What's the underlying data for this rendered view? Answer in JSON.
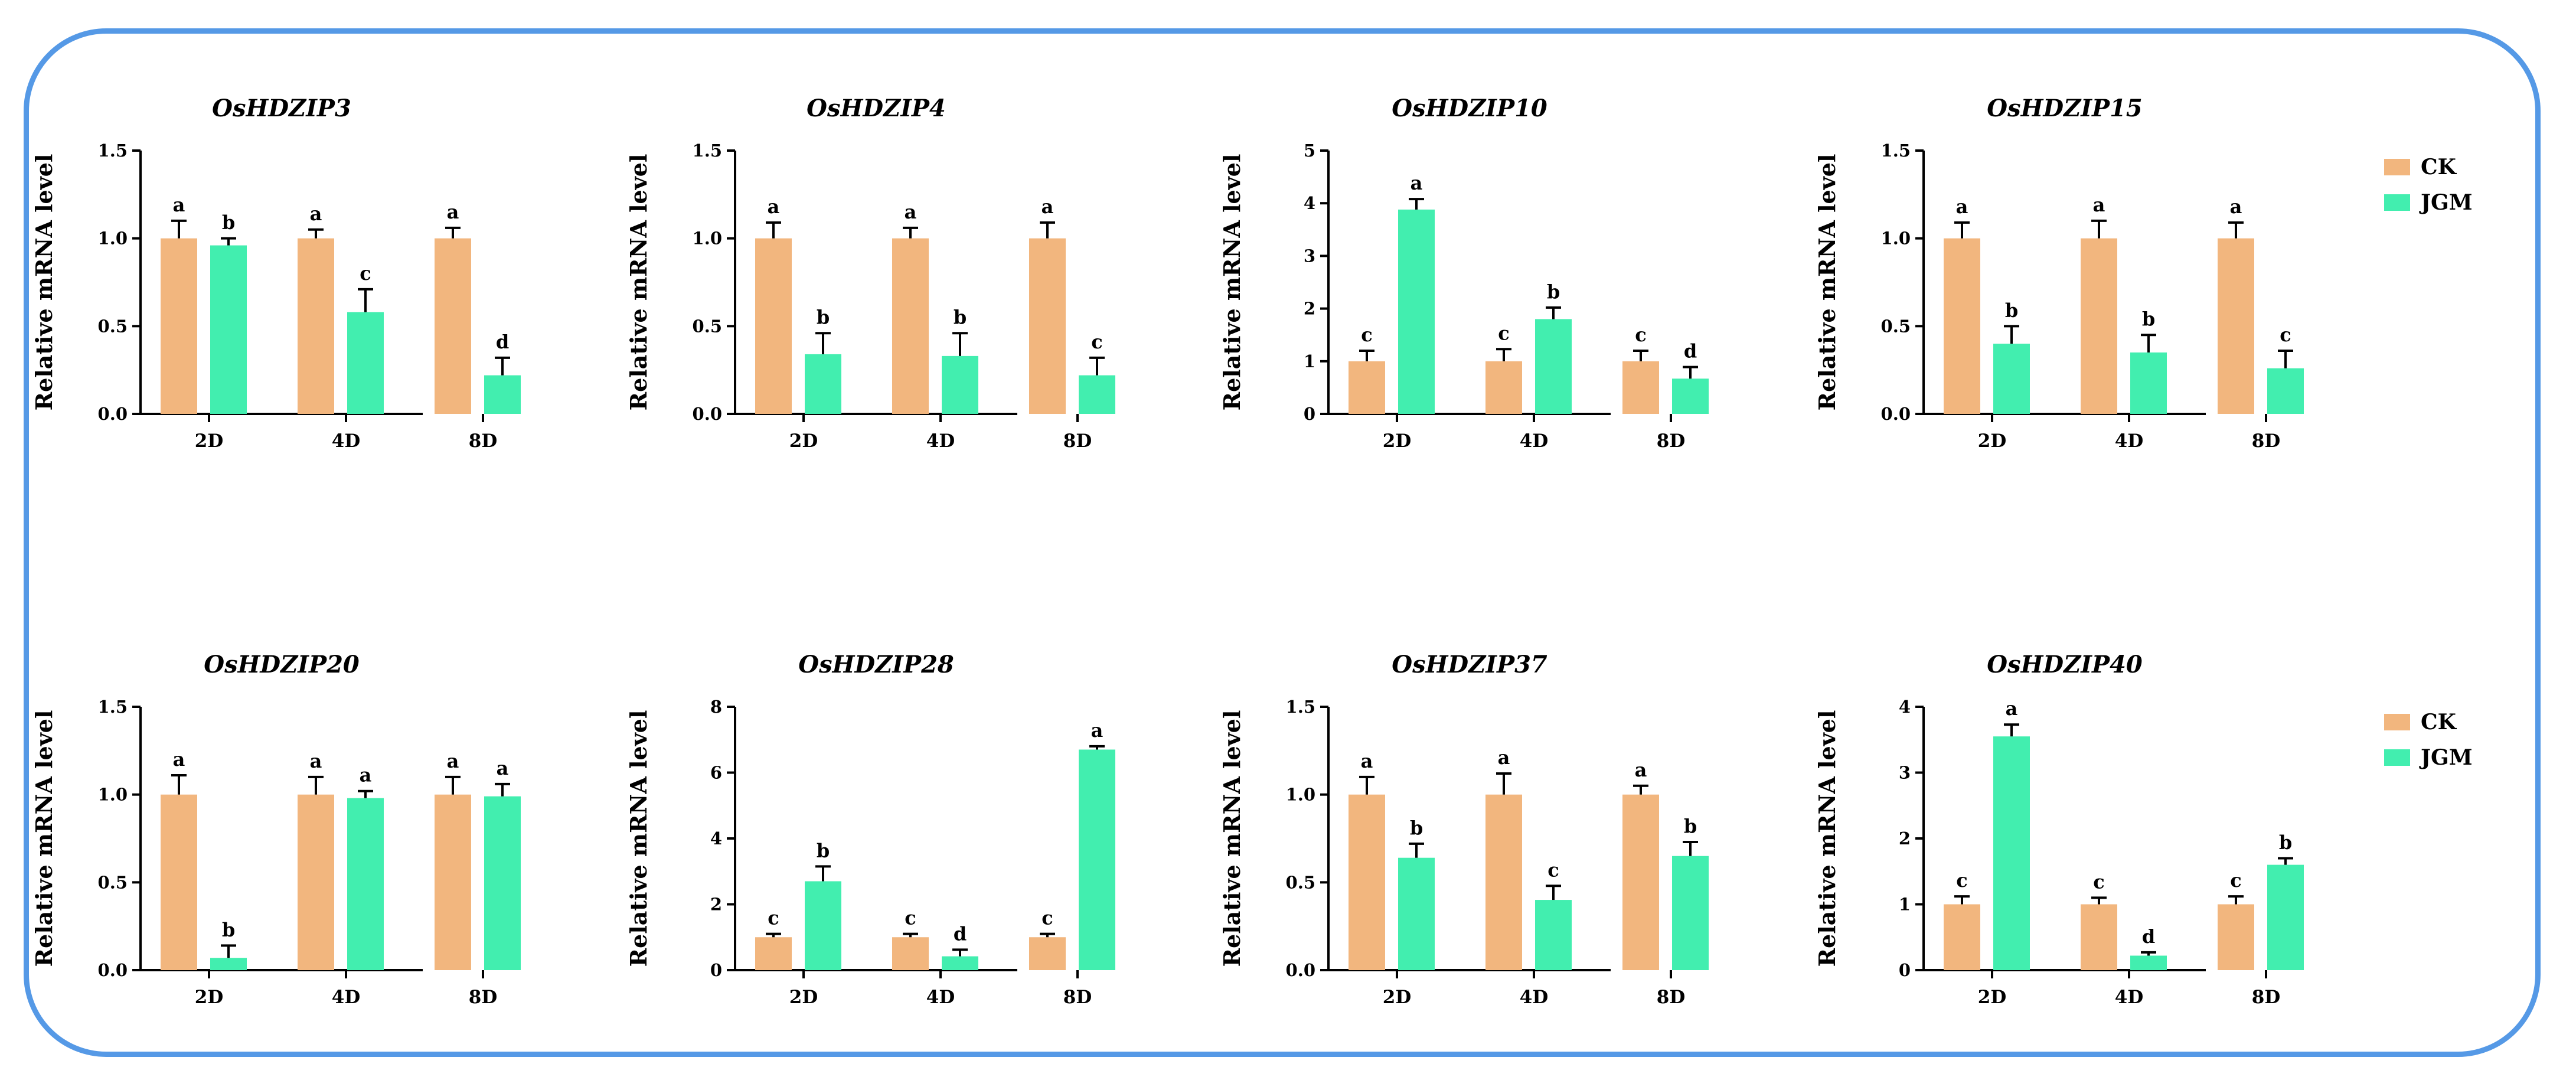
{
  "legend": {
    "items": [
      {
        "label": "CK",
        "color": "#f2b67e"
      },
      {
        "label": "JGM",
        "color": "#42eeaf"
      }
    ]
  },
  "chart_data": [
    {
      "type": "bar",
      "title": "OsHDZIP3",
      "ylabel": "Relative mRNA level",
      "ylim": [
        0,
        1.5
      ],
      "yticks": [
        "0.0",
        "0.5",
        "1.0",
        "1.5"
      ],
      "categories": [
        "2D",
        "4D",
        "8D"
      ],
      "series": [
        {
          "name": "CK",
          "values": [
            1.0,
            1.0,
            1.0
          ],
          "errors": [
            0.1,
            0.05,
            0.06
          ],
          "letters": [
            "a",
            "a",
            "a"
          ]
        },
        {
          "name": "JGM",
          "values": [
            0.96,
            0.58,
            0.22
          ],
          "errors": [
            0.04,
            0.13,
            0.1
          ],
          "letters": [
            "b",
            "c",
            "d"
          ]
        }
      ]
    },
    {
      "type": "bar",
      "title": "OsHDZIP4",
      "ylabel": "Relative mRNA level",
      "ylim": [
        0,
        1.5
      ],
      "yticks": [
        "0.0",
        "0.5",
        "1.0",
        "1.5"
      ],
      "categories": [
        "2D",
        "4D",
        "8D"
      ],
      "series": [
        {
          "name": "CK",
          "values": [
            1.0,
            1.0,
            1.0
          ],
          "errors": [
            0.09,
            0.06,
            0.09
          ],
          "letters": [
            "a",
            "a",
            "a"
          ]
        },
        {
          "name": "JGM",
          "values": [
            0.34,
            0.33,
            0.22
          ],
          "errors": [
            0.12,
            0.13,
            0.1
          ],
          "letters": [
            "b",
            "b",
            "c"
          ]
        }
      ]
    },
    {
      "type": "bar",
      "title": "OsHDZIP10",
      "ylabel": "Relative mRNA level",
      "ylim": [
        0,
        5
      ],
      "yticks": [
        "0",
        "1",
        "2",
        "3",
        "4",
        "5"
      ],
      "categories": [
        "2D",
        "4D",
        "8D"
      ],
      "series": [
        {
          "name": "CK",
          "values": [
            1.0,
            1.0,
            1.0
          ],
          "errors": [
            0.2,
            0.23,
            0.2
          ],
          "letters": [
            "c",
            "c",
            "c"
          ]
        },
        {
          "name": "JGM",
          "values": [
            3.88,
            1.8,
            0.67
          ],
          "errors": [
            0.2,
            0.22,
            0.22
          ],
          "letters": [
            "a",
            "b",
            "d"
          ]
        }
      ]
    },
    {
      "type": "bar",
      "title": "OsHDZIP15",
      "ylabel": "Relative mRNA level",
      "ylim": [
        0,
        1.5
      ],
      "yticks": [
        "0.0",
        "0.5",
        "1.0",
        "1.5"
      ],
      "categories": [
        "2D",
        "4D",
        "8D"
      ],
      "series": [
        {
          "name": "CK",
          "values": [
            1.0,
            1.0,
            1.0
          ],
          "errors": [
            0.09,
            0.1,
            0.09
          ],
          "letters": [
            "a",
            "a",
            "a"
          ]
        },
        {
          "name": "JGM",
          "values": [
            0.4,
            0.35,
            0.26
          ],
          "errors": [
            0.1,
            0.1,
            0.1
          ],
          "letters": [
            "b",
            "b",
            "c"
          ]
        }
      ]
    },
    {
      "type": "bar",
      "title": "OsHDZIP20",
      "ylabel": "Relative mRNA level",
      "ylim": [
        0,
        1.5
      ],
      "yticks": [
        "0.0",
        "0.5",
        "1.0",
        "1.5"
      ],
      "categories": [
        "2D",
        "4D",
        "8D"
      ],
      "series": [
        {
          "name": "CK",
          "values": [
            1.0,
            1.0,
            1.0
          ],
          "errors": [
            0.11,
            0.1,
            0.1
          ],
          "letters": [
            "a",
            "a",
            "a"
          ]
        },
        {
          "name": "JGM",
          "values": [
            0.07,
            0.98,
            0.99
          ],
          "errors": [
            0.07,
            0.04,
            0.07
          ],
          "letters": [
            "b",
            "a",
            "a"
          ]
        }
      ]
    },
    {
      "type": "bar",
      "title": "OsHDZIP28",
      "ylabel": "Relative mRNA level",
      "ylim": [
        0,
        8
      ],
      "yticks": [
        "0",
        "2",
        "4",
        "6",
        "8"
      ],
      "categories": [
        "2D",
        "4D",
        "8D"
      ],
      "series": [
        {
          "name": "CK",
          "values": [
            1.0,
            1.0,
            1.0
          ],
          "errors": [
            0.1,
            0.1,
            0.1
          ],
          "letters": [
            "c",
            "c",
            "c"
          ]
        },
        {
          "name": "JGM",
          "values": [
            2.7,
            0.42,
            6.7
          ],
          "errors": [
            0.45,
            0.2,
            0.1
          ],
          "letters": [
            "b",
            "d",
            "a"
          ]
        }
      ]
    },
    {
      "type": "bar",
      "title": "OsHDZIP37",
      "ylabel": "Relative mRNA level",
      "ylim": [
        0,
        1.5
      ],
      "yticks": [
        "0.0",
        "0.5",
        "1.0",
        "1.5"
      ],
      "categories": [
        "2D",
        "4D",
        "8D"
      ],
      "series": [
        {
          "name": "CK",
          "values": [
            1.0,
            1.0,
            1.0
          ],
          "errors": [
            0.1,
            0.12,
            0.05
          ],
          "letters": [
            "a",
            "a",
            "a"
          ]
        },
        {
          "name": "JGM",
          "values": [
            0.64,
            0.4,
            0.65
          ],
          "errors": [
            0.08,
            0.08,
            0.08
          ],
          "letters": [
            "b",
            "c",
            "b"
          ]
        }
      ]
    },
    {
      "type": "bar",
      "title": "OsHDZIP40",
      "ylabel": "Relative mRNA level",
      "ylim": [
        0,
        4
      ],
      "yticks": [
        "0",
        "1",
        "2",
        "3",
        "4"
      ],
      "categories": [
        "2D",
        "4D",
        "8D"
      ],
      "series": [
        {
          "name": "CK",
          "values": [
            1.0,
            1.0,
            1.0
          ],
          "errors": [
            0.12,
            0.1,
            0.12
          ],
          "letters": [
            "c",
            "c",
            "c"
          ]
        },
        {
          "name": "JGM",
          "values": [
            3.55,
            0.22,
            1.6
          ],
          "errors": [
            0.18,
            0.05,
            0.1
          ],
          "letters": [
            "a",
            "d",
            "b"
          ]
        }
      ]
    }
  ]
}
